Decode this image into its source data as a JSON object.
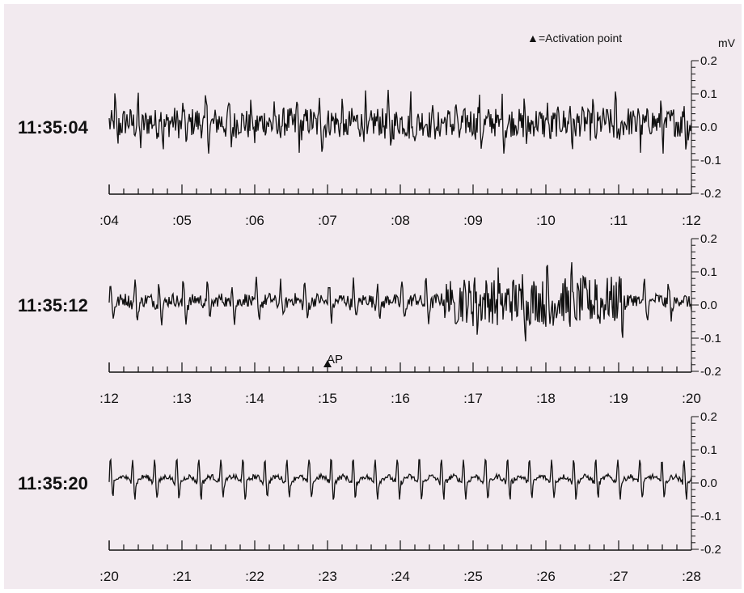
{
  "background_color": "#f2eaef",
  "trace_color": "#111111",
  "legend": {
    "marker": "▲",
    "label": "=Activation point"
  },
  "y_unit": "mV",
  "activation_marker_label": "AP",
  "chart_data": {
    "type": "line",
    "description": "Three-row ECG-style voltage recording, each row covering 8 seconds",
    "y_unit": "mV",
    "ylim": [
      -0.2,
      0.2
    ],
    "y_ticks": [
      "0.2",
      "0.1",
      "0.0",
      "-0.1",
      "-0.2"
    ],
    "rows": [
      {
        "time_label": "11:35:04",
        "x_ticks": [
          ":04",
          ":05",
          ":06",
          ":07",
          ":08",
          ":09",
          ":10",
          ":11",
          ":12"
        ],
        "xlim": [
          4,
          12
        ],
        "beats_per_second": 3.2,
        "amplitude_mV": 0.05,
        "noise_mV": 0.045,
        "peak_range_mV": [
          -0.08,
          0.15
        ]
      },
      {
        "time_label": "11:35:12",
        "x_ticks": [
          ":12",
          ":13",
          ":14",
          ":15",
          ":16",
          ":17",
          ":18",
          ":19",
          ":20"
        ],
        "xlim": [
          12,
          20
        ],
        "beats_per_second": 3.0,
        "amplitude_mV": 0.05,
        "noise_mV": 0.02,
        "irregular_segment": {
          "start": 16.6,
          "end": 19.1,
          "noise_mV": 0.07
        },
        "activation_point": 15,
        "peak_range_mV": [
          -0.12,
          0.17
        ]
      },
      {
        "time_label": "11:35:20",
        "x_ticks": [
          ":20",
          ":21",
          ":22",
          ":23",
          ":24",
          ":25",
          ":26",
          ":27",
          ":28"
        ],
        "xlim": [
          20,
          28
        ],
        "beats_per_second": 3.3,
        "amplitude_mV": 0.055,
        "noise_mV": 0.008,
        "peak_range_mV": [
          -0.05,
          0.07
        ]
      }
    ]
  }
}
